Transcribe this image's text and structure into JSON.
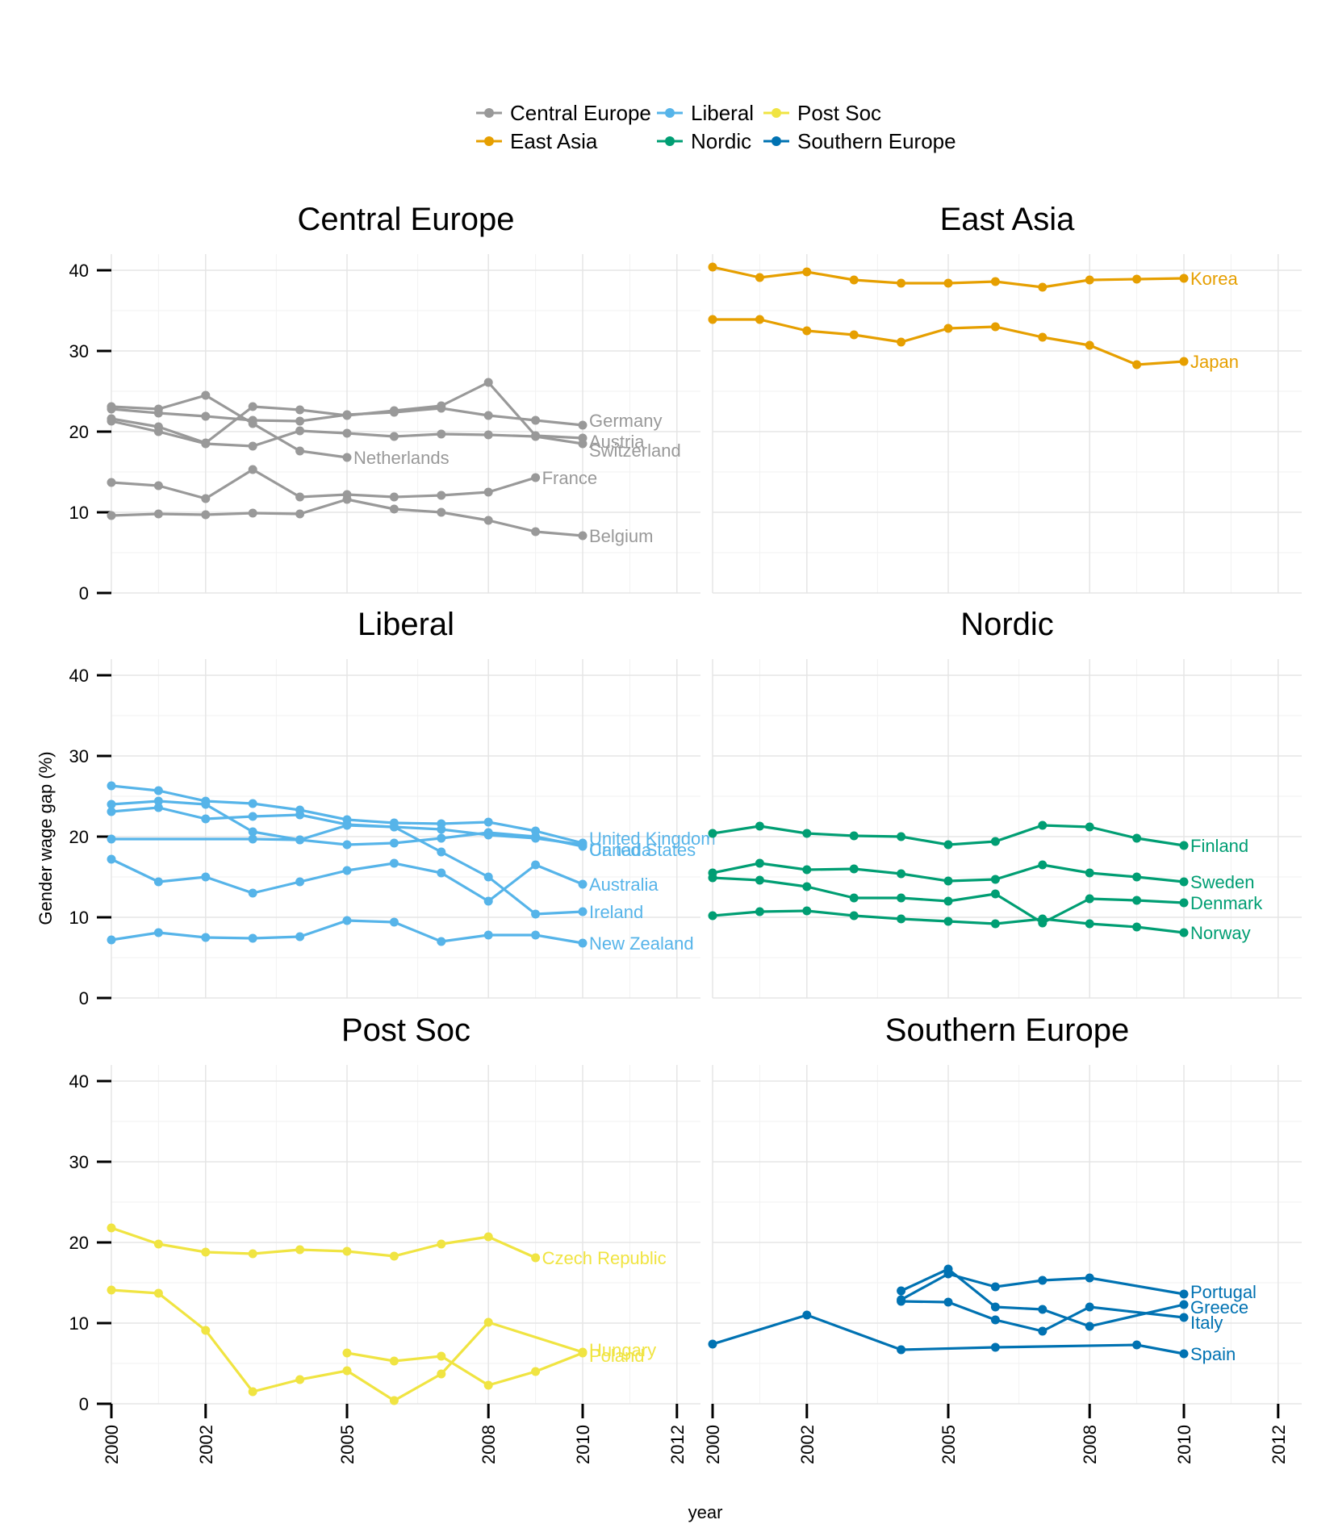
{
  "chart_data": {
    "type": "line",
    "xlabel": "year",
    "ylabel": "Gender wage gap (%)",
    "xlim": [
      2000,
      2012.5
    ],
    "ylim": [
      0,
      42
    ],
    "x_ticks": [
      2000,
      2002,
      2005,
      2008,
      2010,
      2012
    ],
    "y_ticks": [
      0,
      10,
      20,
      30,
      40
    ],
    "grid": true,
    "legend_position": "top",
    "legend": [
      {
        "name": "Central Europe",
        "color": "#999999"
      },
      {
        "name": "East Asia",
        "color": "#E69F00"
      },
      {
        "name": "Liberal",
        "color": "#56B4E9"
      },
      {
        "name": "Nordic",
        "color": "#009E73"
      },
      {
        "name": "Post Soc",
        "color": "#F0E442"
      },
      {
        "name": "Southern Europe",
        "color": "#0072B2"
      }
    ],
    "panels": [
      {
        "title": "Central Europe",
        "color": "#999999",
        "series": [
          {
            "name": "Germany",
            "x": [
              2000,
              2001,
              2002,
              2003,
              2004,
              2005,
              2006,
              2007,
              2008,
              2009,
              2010
            ],
            "y": [
              22.8,
              22.3,
              21.9,
              21.4,
              21.3,
              22.1,
              22.4,
              22.9,
              22.0,
              21.4,
              20.8
            ]
          },
          {
            "name": "Austria",
            "x": [
              2000,
              2001,
              2002,
              2003,
              2004,
              2005,
              2006,
              2007,
              2008,
              2009,
              2010
            ],
            "y": [
              21.6,
              20.6,
              18.6,
              23.1,
              22.7,
              22.0,
              22.6,
              23.2,
              26.1,
              19.5,
              19.2
            ]
          },
          {
            "name": "Switzerland",
            "x": [
              2000,
              2001,
              2002,
              2003,
              2004,
              2005,
              2006,
              2007,
              2008,
              2009,
              2010
            ],
            "y": [
              21.3,
              20.0,
              18.5,
              18.2,
              20.1,
              19.8,
              19.4,
              19.7,
              19.6,
              19.4,
              18.5
            ]
          },
          {
            "name": "Netherlands",
            "x": [
              2000,
              2001,
              2002,
              2003,
              2004,
              2005
            ],
            "y": [
              23.1,
              22.8,
              24.5,
              21.0,
              17.6,
              16.8
            ]
          },
          {
            "name": "France",
            "x": [
              2000,
              2001,
              2002,
              2003,
              2004,
              2005,
              2006,
              2007,
              2008,
              2009
            ],
            "y": [
              13.7,
              13.3,
              11.7,
              15.3,
              11.9,
              12.2,
              11.9,
              12.1,
              12.5,
              14.3
            ]
          },
          {
            "name": "Belgium",
            "x": [
              2000,
              2001,
              2002,
              2003,
              2004,
              2005,
              2006,
              2007,
              2008,
              2009,
              2010
            ],
            "y": [
              9.6,
              9.8,
              9.7,
              9.9,
              9.8,
              11.6,
              10.4,
              10.0,
              9.0,
              7.6,
              7.1
            ]
          }
        ]
      },
      {
        "title": "East Asia",
        "color": "#E69F00",
        "series": [
          {
            "name": "Korea",
            "x": [
              2000,
              2001,
              2002,
              2003,
              2004,
              2005,
              2006,
              2007,
              2008,
              2009,
              2010
            ],
            "y": [
              40.4,
              39.1,
              39.8,
              38.8,
              38.4,
              38.4,
              38.6,
              37.9,
              38.8,
              38.9,
              39.0
            ]
          },
          {
            "name": "Japan",
            "x": [
              2000,
              2001,
              2002,
              2003,
              2004,
              2005,
              2006,
              2007,
              2008,
              2009,
              2010
            ],
            "y": [
              33.9,
              33.9,
              32.5,
              32.0,
              31.1,
              32.8,
              33.0,
              31.7,
              30.7,
              28.3,
              28.7
            ]
          }
        ]
      },
      {
        "title": "Liberal",
        "color": "#56B4E9",
        "series": [
          {
            "name": "United Kingdom",
            "x": [
              2000,
              2001,
              2002,
              2003,
              2004,
              2005,
              2006,
              2007,
              2008,
              2009,
              2010
            ],
            "y": [
              26.3,
              25.7,
              24.4,
              24.1,
              23.3,
              22.1,
              21.7,
              21.6,
              21.8,
              20.7,
              19.2
            ]
          },
          {
            "name": "Canada",
            "x": [
              2000,
              2001,
              2002,
              2003,
              2004,
              2005,
              2006,
              2007,
              2008,
              2009,
              2010
            ],
            "y": [
              24.0,
              24.4,
              24.0,
              20.6,
              19.6,
              19.0,
              19.2,
              19.8,
              20.5,
              20.0,
              18.8
            ]
          },
          {
            "name": "United States",
            "x": [
              2000,
              2003,
              2004,
              2005,
              2006,
              2007,
              2008,
              2009,
              2010
            ],
            "y": [
              19.7,
              19.7,
              19.6,
              21.4,
              21.2,
              20.9,
              20.2,
              19.8,
              19.0
            ]
          },
          {
            "name": "Australia",
            "x": [
              2000,
              2001,
              2002,
              2003,
              2004,
              2005,
              2006,
              2007,
              2008,
              2009,
              2010
            ],
            "y": [
              17.2,
              14.4,
              15.0,
              13.0,
              14.4,
              15.8,
              16.7,
              15.5,
              12.0,
              16.5,
              14.1
            ]
          },
          {
            "name": "Ireland",
            "x": [
              2000,
              2001,
              2002,
              2003,
              2004,
              2005,
              2006,
              2007,
              2008,
              2009,
              2010
            ],
            "y": [
              23.1,
              23.6,
              22.2,
              22.5,
              22.7,
              21.5,
              21.2,
              18.1,
              15.0,
              10.4,
              10.7
            ]
          },
          {
            "name": "New Zealand",
            "x": [
              2000,
              2001,
              2002,
              2003,
              2004,
              2005,
              2006,
              2007,
              2008,
              2009,
              2010
            ],
            "y": [
              7.2,
              8.1,
              7.5,
              7.4,
              7.6,
              9.6,
              9.4,
              7.0,
              7.8,
              7.8,
              6.8
            ]
          }
        ]
      },
      {
        "title": "Nordic",
        "color": "#009E73",
        "series": [
          {
            "name": "Finland",
            "x": [
              2000,
              2001,
              2002,
              2003,
              2004,
              2005,
              2006,
              2007,
              2008,
              2009,
              2010
            ],
            "y": [
              20.4,
              21.3,
              20.4,
              20.1,
              20.0,
              19.0,
              19.4,
              21.4,
              21.2,
              19.8,
              18.9
            ]
          },
          {
            "name": "Sweden",
            "x": [
              2000,
              2001,
              2002,
              2003,
              2004,
              2005,
              2006,
              2007,
              2008,
              2009,
              2010
            ],
            "y": [
              15.5,
              16.7,
              15.9,
              16.0,
              15.4,
              14.5,
              14.7,
              16.5,
              15.5,
              15.0,
              14.4
            ]
          },
          {
            "name": "Denmark",
            "x": [
              2000,
              2001,
              2002,
              2003,
              2004,
              2005,
              2006,
              2007,
              2008,
              2009,
              2010
            ],
            "y": [
              14.9,
              14.6,
              13.8,
              12.4,
              12.4,
              12.0,
              12.9,
              9.3,
              12.3,
              12.1,
              11.8
            ]
          },
          {
            "name": "Norway",
            "x": [
              2000,
              2001,
              2002,
              2003,
              2004,
              2005,
              2006,
              2007,
              2008,
              2009,
              2010
            ],
            "y": [
              10.2,
              10.7,
              10.8,
              10.2,
              9.8,
              9.5,
              9.2,
              9.8,
              9.2,
              8.8,
              8.1
            ]
          }
        ]
      },
      {
        "title": "Post Soc",
        "color": "#F0E442",
        "series": [
          {
            "name": "Czech Republic",
            "x": [
              2000,
              2001,
              2002,
              2003,
              2004,
              2005,
              2006,
              2007,
              2008,
              2009
            ],
            "y": [
              21.8,
              19.8,
              18.8,
              18.6,
              19.1,
              18.9,
              18.3,
              19.8,
              20.7,
              18.1
            ]
          },
          {
            "name": "Hungary",
            "x": [
              2000,
              2001,
              2002,
              2003,
              2004,
              2005,
              2006,
              2007,
              2008,
              2010
            ],
            "y": [
              14.1,
              13.7,
              9.1,
              1.5,
              3.0,
              4.1,
              0.4,
              3.7,
              10.1,
              6.4
            ]
          },
          {
            "name": "Poland",
            "x": [
              2005,
              2006,
              2007,
              2008,
              2009,
              2010
            ],
            "y": [
              6.3,
              5.3,
              5.9,
              2.3,
              4.0,
              6.3
            ]
          }
        ]
      },
      {
        "title": "Southern Europe",
        "color": "#0072B2",
        "series": [
          {
            "name": "Portugal",
            "x": [
              2004,
              2005,
              2006,
              2007,
              2008,
              2010
            ],
            "y": [
              12.9,
              16.1,
              14.5,
              15.3,
              15.6,
              13.6
            ]
          },
          {
            "name": "Greece",
            "x": [
              2004,
              2005,
              2006,
              2007,
              2008,
              2010
            ],
            "y": [
              14.0,
              16.7,
              12.0,
              11.7,
              9.6,
              12.3
            ]
          },
          {
            "name": "Italy",
            "x": [
              2004,
              2005,
              2006,
              2007,
              2008,
              2010
            ],
            "y": [
              12.7,
              12.6,
              10.4,
              9.0,
              12.0,
              10.7
            ]
          },
          {
            "name": "Spain",
            "x": [
              2000,
              2002,
              2004,
              2006,
              2009,
              2010
            ],
            "y": [
              7.4,
              11.0,
              6.7,
              7.0,
              7.3,
              6.2
            ]
          }
        ]
      }
    ]
  }
}
